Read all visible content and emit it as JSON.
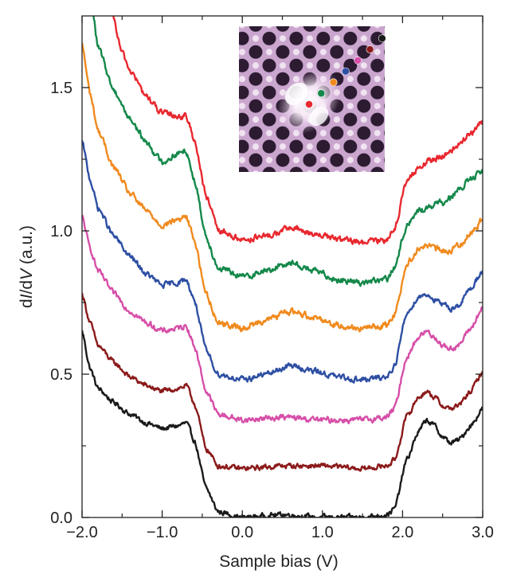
{
  "chart_data": {
    "type": "line",
    "title": "",
    "xlabel": "Sample bias (V)",
    "ylabel_parts": {
      "a": "d",
      "b": "I",
      "c": "/d",
      "d": "V",
      "e": " (a.u.)"
    },
    "xlim": [
      -2.0,
      3.0
    ],
    "ylim": [
      0.0,
      1.75
    ],
    "xticks": [
      -2.0,
      -1.0,
      0.0,
      1.0,
      2.0,
      3.0
    ],
    "xtick_labels": [
      "−2.0",
      "−1.0",
      "0.0",
      "1.0",
      "2.0",
      "3.0"
    ],
    "yticks": [
      0.0,
      0.5,
      1.0,
      1.5
    ],
    "ytick_labels": [
      "0.0",
      "0.5",
      "1.0",
      "1.5"
    ],
    "grid": false,
    "series": [
      {
        "name": "black",
        "color": "#1a1a1a",
        "noise": 0.01,
        "points": [
          [
            -2.0,
            0.65
          ],
          [
            -1.9,
            0.52
          ],
          [
            -1.8,
            0.45
          ],
          [
            -1.6,
            0.4
          ],
          [
            -1.4,
            0.36
          ],
          [
            -1.2,
            0.33
          ],
          [
            -1.0,
            0.31
          ],
          [
            -0.8,
            0.32
          ],
          [
            -0.7,
            0.33
          ],
          [
            -0.6,
            0.27
          ],
          [
            -0.45,
            0.1
          ],
          [
            -0.3,
            0.02
          ],
          [
            0.0,
            0.0
          ],
          [
            0.5,
            0.01
          ],
          [
            1.0,
            0.0
          ],
          [
            1.5,
            0.0
          ],
          [
            1.8,
            0.01
          ],
          [
            1.9,
            0.03
          ],
          [
            2.05,
            0.2
          ],
          [
            2.2,
            0.3
          ],
          [
            2.3,
            0.34
          ],
          [
            2.4,
            0.32
          ],
          [
            2.5,
            0.28
          ],
          [
            2.6,
            0.26
          ],
          [
            2.7,
            0.27
          ],
          [
            2.85,
            0.32
          ],
          [
            3.0,
            0.38
          ]
        ]
      },
      {
        "name": "dark-red",
        "color": "#8b1a1a",
        "noise": 0.01,
        "points": [
          [
            -2.0,
            0.78
          ],
          [
            -1.9,
            0.68
          ],
          [
            -1.8,
            0.6
          ],
          [
            -1.6,
            0.54
          ],
          [
            -1.4,
            0.49
          ],
          [
            -1.2,
            0.46
          ],
          [
            -1.0,
            0.44
          ],
          [
            -0.8,
            0.45
          ],
          [
            -0.7,
            0.46
          ],
          [
            -0.6,
            0.4
          ],
          [
            -0.45,
            0.24
          ],
          [
            -0.3,
            0.18
          ],
          [
            0.0,
            0.17
          ],
          [
            0.5,
            0.18
          ],
          [
            1.0,
            0.18
          ],
          [
            1.5,
            0.17
          ],
          [
            1.8,
            0.18
          ],
          [
            1.9,
            0.2
          ],
          [
            2.05,
            0.35
          ],
          [
            2.2,
            0.42
          ],
          [
            2.3,
            0.44
          ],
          [
            2.4,
            0.42
          ],
          [
            2.5,
            0.39
          ],
          [
            2.6,
            0.38
          ],
          [
            2.7,
            0.39
          ],
          [
            2.85,
            0.44
          ],
          [
            3.0,
            0.51
          ]
        ]
      },
      {
        "name": "pink",
        "color": "#d64fa8",
        "noise": 0.011,
        "points": [
          [
            -2.0,
            1.05
          ],
          [
            -1.9,
            0.94
          ],
          [
            -1.8,
            0.86
          ],
          [
            -1.6,
            0.78
          ],
          [
            -1.4,
            0.72
          ],
          [
            -1.2,
            0.68
          ],
          [
            -1.0,
            0.65
          ],
          [
            -0.8,
            0.66
          ],
          [
            -0.7,
            0.67
          ],
          [
            -0.6,
            0.6
          ],
          [
            -0.45,
            0.44
          ],
          [
            -0.3,
            0.36
          ],
          [
            0.0,
            0.34
          ],
          [
            0.5,
            0.35
          ],
          [
            1.0,
            0.34
          ],
          [
            1.5,
            0.34
          ],
          [
            1.8,
            0.35
          ],
          [
            1.9,
            0.38
          ],
          [
            2.05,
            0.56
          ],
          [
            2.2,
            0.63
          ],
          [
            2.3,
            0.65
          ],
          [
            2.4,
            0.63
          ],
          [
            2.5,
            0.6
          ],
          [
            2.6,
            0.59
          ],
          [
            2.7,
            0.6
          ],
          [
            2.85,
            0.66
          ],
          [
            3.0,
            0.73
          ]
        ]
      },
      {
        "name": "blue",
        "color": "#2e4fa3",
        "noise": 0.011,
        "points": [
          [
            -2.0,
            1.31
          ],
          [
            -1.9,
            1.18
          ],
          [
            -1.8,
            1.08
          ],
          [
            -1.6,
            0.98
          ],
          [
            -1.4,
            0.91
          ],
          [
            -1.2,
            0.85
          ],
          [
            -1.0,
            0.81
          ],
          [
            -0.8,
            0.82
          ],
          [
            -0.7,
            0.83
          ],
          [
            -0.6,
            0.76
          ],
          [
            -0.45,
            0.58
          ],
          [
            -0.3,
            0.5
          ],
          [
            0.0,
            0.48
          ],
          [
            0.3,
            0.5
          ],
          [
            0.6,
            0.53
          ],
          [
            0.9,
            0.51
          ],
          [
            1.2,
            0.49
          ],
          [
            1.5,
            0.48
          ],
          [
            1.8,
            0.49
          ],
          [
            1.9,
            0.53
          ],
          [
            2.05,
            0.71
          ],
          [
            2.2,
            0.77
          ],
          [
            2.3,
            0.78
          ],
          [
            2.4,
            0.76
          ],
          [
            2.5,
            0.74
          ],
          [
            2.6,
            0.73
          ],
          [
            2.7,
            0.74
          ],
          [
            2.85,
            0.8
          ],
          [
            3.0,
            0.86
          ]
        ]
      },
      {
        "name": "orange",
        "color": "#f08a1e",
        "noise": 0.012,
        "points": [
          [
            -2.0,
            1.65
          ],
          [
            -1.9,
            1.48
          ],
          [
            -1.8,
            1.35
          ],
          [
            -1.6,
            1.22
          ],
          [
            -1.4,
            1.13
          ],
          [
            -1.2,
            1.07
          ],
          [
            -1.0,
            1.02
          ],
          [
            -0.8,
            1.04
          ],
          [
            -0.7,
            1.05
          ],
          [
            -0.6,
            0.97
          ],
          [
            -0.45,
            0.78
          ],
          [
            -0.3,
            0.68
          ],
          [
            0.0,
            0.66
          ],
          [
            0.3,
            0.69
          ],
          [
            0.6,
            0.72
          ],
          [
            0.9,
            0.7
          ],
          [
            1.2,
            0.67
          ],
          [
            1.5,
            0.66
          ],
          [
            1.8,
            0.67
          ],
          [
            1.9,
            0.71
          ],
          [
            2.05,
            0.88
          ],
          [
            2.2,
            0.94
          ],
          [
            2.3,
            0.95
          ],
          [
            2.4,
            0.94
          ],
          [
            2.5,
            0.93
          ],
          [
            2.6,
            0.93
          ],
          [
            2.7,
            0.95
          ],
          [
            2.85,
            0.99
          ],
          [
            3.0,
            1.04
          ]
        ]
      },
      {
        "name": "green",
        "color": "#14884a",
        "noise": 0.012,
        "points": [
          [
            -1.86,
            1.75
          ],
          [
            -1.8,
            1.64
          ],
          [
            -1.6,
            1.49
          ],
          [
            -1.4,
            1.39
          ],
          [
            -1.2,
            1.31
          ],
          [
            -1.0,
            1.24
          ],
          [
            -0.8,
            1.27
          ],
          [
            -0.7,
            1.28
          ],
          [
            -0.6,
            1.18
          ],
          [
            -0.45,
            0.98
          ],
          [
            -0.3,
            0.87
          ],
          [
            0.0,
            0.84
          ],
          [
            0.3,
            0.86
          ],
          [
            0.6,
            0.89
          ],
          [
            0.9,
            0.86
          ],
          [
            1.2,
            0.83
          ],
          [
            1.5,
            0.82
          ],
          [
            1.8,
            0.83
          ],
          [
            1.9,
            0.87
          ],
          [
            2.05,
            1.02
          ],
          [
            2.2,
            1.07
          ],
          [
            2.3,
            1.08
          ],
          [
            2.4,
            1.09
          ],
          [
            2.5,
            1.1
          ],
          [
            2.6,
            1.12
          ],
          [
            2.7,
            1.14
          ],
          [
            2.85,
            1.18
          ],
          [
            3.0,
            1.21
          ]
        ]
      },
      {
        "name": "red",
        "color": "#e8282f",
        "noise": 0.012,
        "points": [
          [
            -1.62,
            1.75
          ],
          [
            -1.5,
            1.62
          ],
          [
            -1.4,
            1.56
          ],
          [
            -1.2,
            1.47
          ],
          [
            -1.0,
            1.41
          ],
          [
            -0.8,
            1.4
          ],
          [
            -0.7,
            1.4
          ],
          [
            -0.6,
            1.32
          ],
          [
            -0.45,
            1.12
          ],
          [
            -0.3,
            1.0
          ],
          [
            0.0,
            0.97
          ],
          [
            0.3,
            0.98
          ],
          [
            0.6,
            1.01
          ],
          [
            0.9,
            0.99
          ],
          [
            1.2,
            0.97
          ],
          [
            1.5,
            0.96
          ],
          [
            1.8,
            0.97
          ],
          [
            1.9,
            1.01
          ],
          [
            2.05,
            1.17
          ],
          [
            2.2,
            1.22
          ],
          [
            2.3,
            1.24
          ],
          [
            2.4,
            1.25
          ],
          [
            2.5,
            1.26
          ],
          [
            2.6,
            1.28
          ],
          [
            2.7,
            1.3
          ],
          [
            2.85,
            1.34
          ],
          [
            3.0,
            1.38
          ]
        ]
      }
    ],
    "inset": {
      "type": "heatmap",
      "description": "STM topograph with colored markers at each spectrum location",
      "marker_colors": [
        "#e8282f",
        "#14884a",
        "#f08a1e",
        "#2e4fa3",
        "#d64fa8",
        "#8b1a1a",
        "#1a1a1a"
      ]
    }
  }
}
